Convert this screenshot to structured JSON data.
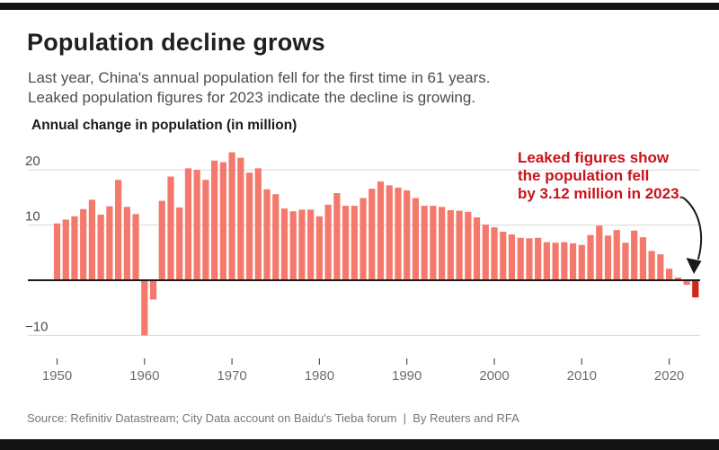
{
  "page": {
    "title": "Population decline grows",
    "subtitle_line1": "Last year, China's annual population fell for the first time in 61 years.",
    "subtitle_line2": "Leaked population figures for 2023 indicate the decline is growing.",
    "source": "Source: Refinitiv Datastream; City Data account on Baidu's Tieba forum  |  By Reuters and RFA"
  },
  "annotation": {
    "line1": "Leaked figures show",
    "line2": "the population fell",
    "line3": "by 3.12 million in 2023."
  },
  "colors": {
    "bar": "#f4796c",
    "bar_highlight": "#d2251c",
    "annotation_red": "#c7141a",
    "zero_line": "#1a1a1a",
    "gridline": "#d9d9d9",
    "axis_text": "#6e6e6e",
    "y_label_text": "#4a4a4a",
    "frame": "#141414"
  },
  "chart_data": {
    "type": "bar",
    "title": "Annual change in population (in million)",
    "xlabel": "",
    "ylabel": "Annual change in population (in million)",
    "ylim": [
      -12,
      24
    ],
    "grid": true,
    "legend": false,
    "highlight_year": 2023,
    "y_gridlines": [
      {
        "value": 20,
        "label": "20"
      },
      {
        "value": 10,
        "label": "10"
      },
      {
        "value": -10,
        "label": "−10"
      }
    ],
    "x_ticks": [
      {
        "value": 1950,
        "label": "1950"
      },
      {
        "value": 1960,
        "label": "1960"
      },
      {
        "value": 1970,
        "label": "1970"
      },
      {
        "value": 1980,
        "label": "1980"
      },
      {
        "value": 1990,
        "label": "1990"
      },
      {
        "value": 2000,
        "label": "2000"
      },
      {
        "value": 2010,
        "label": "2010"
      },
      {
        "value": 2020,
        "label": "2020"
      }
    ],
    "years": [
      1950,
      1951,
      1952,
      1953,
      1954,
      1955,
      1956,
      1957,
      1958,
      1959,
      1960,
      1961,
      1962,
      1963,
      1964,
      1965,
      1966,
      1967,
      1968,
      1969,
      1970,
      1971,
      1972,
      1973,
      1974,
      1975,
      1976,
      1977,
      1978,
      1979,
      1980,
      1981,
      1982,
      1983,
      1984,
      1985,
      1986,
      1987,
      1988,
      1989,
      1990,
      1991,
      1992,
      1993,
      1994,
      1995,
      1996,
      1997,
      1998,
      1999,
      2000,
      2001,
      2002,
      2003,
      2004,
      2005,
      2006,
      2007,
      2008,
      2009,
      2010,
      2011,
      2012,
      2013,
      2014,
      2015,
      2016,
      2017,
      2018,
      2019,
      2020,
      2021,
      2022,
      2023
    ],
    "values": [
      10.3,
      11.0,
      11.6,
      12.9,
      14.6,
      11.9,
      13.4,
      18.2,
      13.3,
      12.0,
      -10.0,
      -3.5,
      14.4,
      18.8,
      13.2,
      20.3,
      20.0,
      18.2,
      21.7,
      21.4,
      23.2,
      22.2,
      19.5,
      20.3,
      16.5,
      15.6,
      13.0,
      12.5,
      12.8,
      12.8,
      11.6,
      13.7,
      15.8,
      13.5,
      13.5,
      14.9,
      16.6,
      17.9,
      17.2,
      16.8,
      16.3,
      14.9,
      13.5,
      13.5,
      13.3,
      12.7,
      12.6,
      12.4,
      11.4,
      10.1,
      9.6,
      8.8,
      8.3,
      7.7,
      7.6,
      7.7,
      6.9,
      6.8,
      6.9,
      6.7,
      6.4,
      8.2,
      9.9,
      8.1,
      9.1,
      6.8,
      9.0,
      7.8,
      5.3,
      4.7,
      2.1,
      0.5,
      -0.85,
      -3.12
    ]
  }
}
